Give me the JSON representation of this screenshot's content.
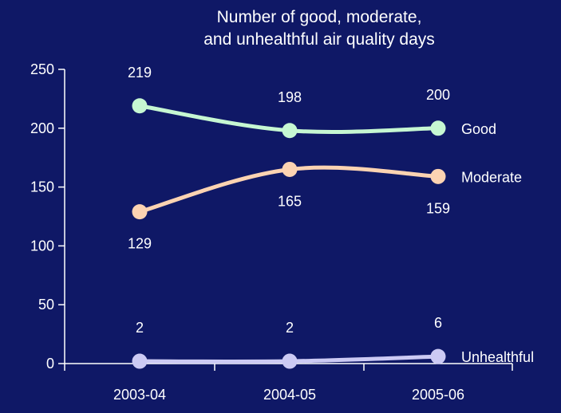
{
  "chart_data": {
    "type": "line",
    "title": "Number of good, moderate, and unhealthful air quality days",
    "title_lines": [
      "Number of good, moderate,",
      "and unhealthful air quality days"
    ],
    "categories": [
      "2003-04",
      "2004-05",
      "2005-06"
    ],
    "ylim": [
      0,
      250
    ],
    "yticks": [
      0,
      50,
      100,
      150,
      200,
      250
    ],
    "ytick_labels": [
      "0",
      "50",
      "100",
      "150",
      "200",
      "250"
    ],
    "grid": false,
    "legend": "inline-right",
    "series": [
      {
        "name": "Good",
        "values": [
          219,
          198,
          200
        ],
        "labels": [
          "219",
          "198",
          "200"
        ],
        "label_position": "above",
        "color": "#c6f7d2"
      },
      {
        "name": "Moderate",
        "values": [
          129,
          165,
          159
        ],
        "labels": [
          "129",
          "165",
          "159"
        ],
        "label_position": "below",
        "color": "#fcd3b2"
      },
      {
        "name": "Unhealthful",
        "values": [
          2,
          2,
          6
        ],
        "labels": [
          "2",
          "2",
          "6"
        ],
        "label_position": "above",
        "color": "#cccaf4"
      }
    ]
  },
  "colors": {
    "background": "#0f1866",
    "axis": "#ffffff",
    "text": "#ffffff"
  }
}
